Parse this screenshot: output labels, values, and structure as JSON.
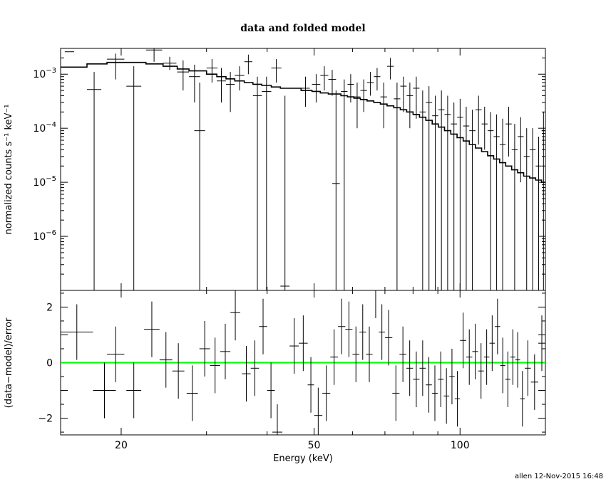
{
  "chart_data": [
    {
      "type": "scatter",
      "title": "data and folded model",
      "xlabel": "Energy (keV)",
      "ylabel": "normalized counts s⁻¹ keV⁻¹",
      "xscale": "log",
      "yscale": "log",
      "xlim": [
        15,
        150
      ],
      "ylim": [
        1e-07,
        0.003
      ],
      "x_ticks": [
        {
          "value": 20,
          "label": "20"
        },
        {
          "value": 50,
          "label": "50"
        },
        {
          "value": 100,
          "label": "100"
        }
      ],
      "y_ticks": [
        {
          "value": 0.001,
          "base": "10",
          "exp": "−3"
        },
        {
          "value": 0.0001,
          "base": "10",
          "exp": "−4"
        },
        {
          "value": 1e-05,
          "base": "10",
          "exp": "−5"
        },
        {
          "value": 1e-06,
          "base": "10",
          "exp": "−6"
        }
      ],
      "data_points": [
        [
          15.3,
          16.0,
          0.0026,
          0.0026,
          0.0026
        ],
        [
          17.0,
          18.2,
          0.00052,
          1e-07,
          0.0011
        ],
        [
          18.7,
          20.3,
          0.0019,
          0.0008,
          0.0024
        ],
        [
          20.5,
          22.0,
          0.0006,
          1e-07,
          0.0014
        ],
        [
          22.5,
          24.3,
          0.0028,
          0.0017,
          0.003
        ],
        [
          24.4,
          26.0,
          0.0016,
          0.0012,
          0.0021
        ],
        [
          26.1,
          27.6,
          0.0011,
          0.0005,
          0.0018
        ],
        [
          27.6,
          29.1,
          0.0009,
          0.0003,
          0.0015
        ],
        [
          28.3,
          29.8,
          9e-05,
          1e-07,
          0.0007
        ],
        [
          30.0,
          31.6,
          0.0013,
          0.0007,
          0.0019
        ],
        [
          31.5,
          32.9,
          0.00075,
          0.0003,
          0.0013
        ],
        [
          32.9,
          34.3,
          0.00065,
          0.0002,
          0.0011
        ],
        [
          34.3,
          35.9,
          0.00095,
          0.0005,
          0.0014
        ],
        [
          35.9,
          37.3,
          0.0017,
          0.001,
          0.0023
        ],
        [
          37.4,
          39.0,
          0.0004,
          1e-07,
          0.0009
        ],
        [
          39.0,
          40.8,
          0.00048,
          1e-07,
          0.0009
        ],
        [
          40.8,
          42.8,
          0.0013,
          0.0007,
          0.0019
        ],
        [
          42.6,
          44.5,
          1.2e-07,
          1e-07,
          0.0004
        ],
        [
          47.0,
          49.0,
          0.00055,
          0.00025,
          0.0009
        ],
        [
          49.5,
          51.5,
          0.00065,
          0.0003,
          0.001
        ],
        [
          51.5,
          53.5,
          0.00095,
          0.0005,
          0.0014
        ],
        [
          53.5,
          55.5,
          0.0008,
          0.0004,
          0.0012
        ],
        [
          54.5,
          56.5,
          9.5e-06,
          1e-07,
          0.0005
        ],
        [
          56.8,
          58.6,
          0.00048,
          1e-07,
          0.0008
        ],
        [
          58.6,
          60.4,
          0.00065,
          0.0003,
          0.001
        ],
        [
          60.4,
          62.3,
          0.00038,
          0.0001,
          0.0007
        ],
        [
          62.3,
          64.3,
          0.0005,
          0.0002,
          0.0008
        ],
        [
          64.3,
          66.4,
          0.0007,
          0.0004,
          0.0011
        ],
        [
          66.4,
          68.5,
          0.0009,
          0.0005,
          0.0013
        ],
        [
          68.5,
          70.7,
          0.00038,
          0.0001,
          0.0007
        ],
        [
          70.7,
          73.0,
          0.0014,
          0.0008,
          0.002
        ],
        [
          73.0,
          75.3,
          0.00035,
          1e-07,
          0.0007
        ],
        [
          75.3,
          77.6,
          0.0006,
          0.0002,
          0.0009
        ],
        [
          77.6,
          80.0,
          0.0004,
          0.0001,
          0.0007
        ],
        [
          80.0,
          82.5,
          0.00055,
          0.00015,
          0.0009
        ],
        [
          82.5,
          85.0,
          0.0002,
          1e-07,
          0.0005
        ],
        [
          85.0,
          87.6,
          0.0003,
          1e-07,
          0.0006
        ],
        [
          87.6,
          90.2,
          0.00017,
          1e-07,
          0.0004
        ],
        [
          90.2,
          92.9,
          0.00022,
          1e-07,
          0.0005
        ],
        [
          92.9,
          95.7,
          0.00018,
          1e-07,
          0.0004
        ],
        [
          95.7,
          98.6,
          0.00012,
          1e-07,
          0.0003
        ],
        [
          98.6,
          101.5,
          0.00016,
          1e-07,
          0.00035
        ],
        [
          101.5,
          104.5,
          0.00011,
          1e-07,
          0.00025
        ],
        [
          104.5,
          107.6,
          9e-05,
          1e-07,
          0.00022
        ],
        [
          107.6,
          110.8,
          0.00022,
          5e-05,
          0.0004
        ],
        [
          110.8,
          114.0,
          0.00012,
          4e-05,
          0.00025
        ],
        [
          114.0,
          117.3,
          9e-05,
          1e-07,
          0.0002
        ],
        [
          117.3,
          120.7,
          7e-05,
          1e-07,
          0.00018
        ],
        [
          120.7,
          124.2,
          5e-05,
          1e-07,
          0.00015
        ],
        [
          124.2,
          127.8,
          0.00012,
          3e-05,
          0.00025
        ],
        [
          127.8,
          131.5,
          4e-05,
          1e-07,
          0.00012
        ],
        [
          131.5,
          135.3,
          7e-05,
          1e-05,
          0.00016
        ],
        [
          135.3,
          139.2,
          3e-05,
          1e-07,
          0.0001
        ],
        [
          139.2,
          143.2,
          4e-05,
          1e-07,
          0.0001
        ],
        [
          143.2,
          147.3,
          2e-05,
          1e-07,
          7e-05
        ],
        [
          147.3,
          150.0,
          9e-05,
          1e-07,
          0.0002
        ]
      ],
      "model_steps": [
        [
          15.0,
          17.0,
          0.00135
        ],
        [
          17.0,
          18.7,
          0.00155
        ],
        [
          18.7,
          20.5,
          0.00165
        ],
        [
          20.5,
          22.5,
          0.00165
        ],
        [
          22.5,
          24.4,
          0.00155
        ],
        [
          24.4,
          26.1,
          0.0014
        ],
        [
          26.1,
          27.6,
          0.00125
        ],
        [
          27.6,
          30.0,
          0.00115
        ],
        [
          30.0,
          31.5,
          0.001
        ],
        [
          31.5,
          32.9,
          0.0009
        ],
        [
          32.9,
          34.3,
          0.00082
        ],
        [
          34.3,
          35.9,
          0.00075
        ],
        [
          35.9,
          37.4,
          0.0007
        ],
        [
          37.4,
          39.0,
          0.00065
        ],
        [
          39.0,
          40.8,
          0.00062
        ],
        [
          40.8,
          42.6,
          0.00058
        ],
        [
          42.6,
          47.0,
          0.00055
        ],
        [
          47.0,
          49.5,
          0.0005
        ],
        [
          49.5,
          51.5,
          0.00048
        ],
        [
          51.5,
          53.5,
          0.00045
        ],
        [
          53.5,
          56.8,
          0.00043
        ],
        [
          56.8,
          58.6,
          0.0004
        ],
        [
          58.6,
          60.4,
          0.00038
        ],
        [
          60.4,
          62.3,
          0.00036
        ],
        [
          62.3,
          64.3,
          0.00034
        ],
        [
          64.3,
          66.4,
          0.00032
        ],
        [
          66.4,
          68.5,
          0.0003
        ],
        [
          68.5,
          70.7,
          0.00028
        ],
        [
          70.7,
          73.0,
          0.00026
        ],
        [
          73.0,
          75.3,
          0.00024
        ],
        [
          75.3,
          77.6,
          0.00022
        ],
        [
          77.6,
          80.0,
          0.0002
        ],
        [
          80.0,
          82.5,
          0.00018
        ],
        [
          82.5,
          85.0,
          0.00016
        ],
        [
          85.0,
          87.6,
          0.00014
        ],
        [
          87.6,
          90.2,
          0.00012
        ],
        [
          90.2,
          92.9,
          0.000105
        ],
        [
          92.9,
          95.7,
          9e-05
        ],
        [
          95.7,
          98.6,
          7.8e-05
        ],
        [
          98.6,
          101.5,
          6.7e-05
        ],
        [
          101.5,
          104.5,
          5.8e-05
        ],
        [
          104.5,
          107.6,
          5e-05
        ],
        [
          107.6,
          110.8,
          4.3e-05
        ],
        [
          110.8,
          114.0,
          3.7e-05
        ],
        [
          114.0,
          117.3,
          3.1e-05
        ],
        [
          117.3,
          120.7,
          2.7e-05
        ],
        [
          120.7,
          124.2,
          2.3e-05
        ],
        [
          124.2,
          127.8,
          2e-05
        ],
        [
          127.8,
          131.5,
          1.7e-05
        ],
        [
          131.5,
          135.3,
          1.5e-05
        ],
        [
          135.3,
          139.2,
          1.3e-05
        ],
        [
          139.2,
          143.2,
          1.2e-05
        ],
        [
          143.2,
          147.3,
          1.1e-05
        ],
        [
          147.3,
          150.0,
          1e-05
        ]
      ],
      "model_color": "#000000"
    },
    {
      "type": "scatter",
      "ylabel": "(data−model)/error",
      "xlabel": "Energy (keV)",
      "xscale": "log",
      "xlim": [
        15,
        150
      ],
      "ylim": [
        -2.6,
        2.6
      ],
      "y_ticks": [
        {
          "value": 2,
          "label": "2"
        },
        {
          "value": 0,
          "label": "0"
        },
        {
          "value": -2,
          "label": "−2"
        }
      ],
      "zero_line_color": "#00ff00",
      "residuals": [
        [
          15.0,
          17.5,
          1.1,
          0.1,
          2.1
        ],
        [
          17.5,
          19.5,
          -1.0,
          -2.0,
          0.0
        ],
        [
          18.7,
          20.3,
          0.3,
          -0.7,
          1.3
        ],
        [
          20.5,
          22.0,
          -1.0,
          -2.0,
          0.0
        ],
        [
          22.3,
          24.0,
          1.2,
          0.2,
          2.2
        ],
        [
          24.0,
          25.5,
          0.1,
          -0.9,
          1.1
        ],
        [
          25.5,
          27.0,
          -0.3,
          -1.3,
          0.7
        ],
        [
          27.3,
          28.8,
          -1.1,
          -2.1,
          -0.1
        ],
        [
          29.0,
          30.5,
          0.5,
          -0.5,
          1.5
        ],
        [
          30.5,
          32.0,
          -0.1,
          -1.1,
          0.9
        ],
        [
          32.0,
          33.6,
          0.4,
          -0.6,
          1.4
        ],
        [
          33.6,
          35.2,
          1.8,
          0.8,
          2.6
        ],
        [
          35.5,
          37.0,
          -0.4,
          -1.4,
          0.6
        ],
        [
          37.0,
          38.5,
          -0.2,
          -1.2,
          0.8
        ],
        [
          38.5,
          40.0,
          1.3,
          0.3,
          2.3
        ],
        [
          40.0,
          41.5,
          -1.0,
          -2.0,
          0.0
        ],
        [
          41.0,
          43.0,
          -2.5,
          -2.6,
          -1.5
        ],
        [
          44.5,
          46.5,
          0.6,
          -0.4,
          1.6
        ],
        [
          46.5,
          48.5,
          0.7,
          -0.3,
          1.7
        ],
        [
          48.5,
          50.0,
          -0.8,
          -1.8,
          0.2
        ],
        [
          50.0,
          52.0,
          -1.9,
          -2.6,
          -0.9
        ],
        [
          52.0,
          54.0,
          -1.1,
          -2.1,
          -0.1
        ],
        [
          54.0,
          56.0,
          0.2,
          -0.8,
          1.2
        ],
        [
          56.0,
          58.0,
          1.3,
          0.3,
          2.3
        ],
        [
          58.0,
          60.0,
          1.2,
          0.2,
          2.2
        ],
        [
          60.0,
          62.0,
          0.3,
          -0.7,
          1.3
        ],
        [
          62.0,
          64.0,
          1.1,
          0.1,
          2.1
        ],
        [
          64.0,
          66.0,
          0.3,
          -0.7,
          1.3
        ],
        [
          66.0,
          68.0,
          2.6,
          1.6,
          2.6
        ],
        [
          68.0,
          70.0,
          1.1,
          0.1,
          2.1
        ],
        [
          70.0,
          72.5,
          0.9,
          -0.1,
          1.9
        ],
        [
          72.5,
          75.0,
          -1.1,
          -2.1,
          -0.1
        ],
        [
          75.0,
          77.5,
          0.3,
          -0.7,
          1.3
        ],
        [
          77.5,
          80.0,
          -0.2,
          -1.2,
          0.8
        ],
        [
          80.0,
          82.5,
          -0.6,
          -1.6,
          0.4
        ],
        [
          82.5,
          85.0,
          -0.2,
          -1.2,
          0.8
        ],
        [
          85.0,
          87.5,
          -0.8,
          -1.8,
          0.2
        ],
        [
          87.5,
          90.0,
          -1.1,
          -2.1,
          -0.1
        ],
        [
          90.0,
          92.5,
          -0.6,
          -1.6,
          0.4
        ],
        [
          92.5,
          95.0,
          -1.2,
          -2.2,
          -0.2
        ],
        [
          95.0,
          97.5,
          -0.5,
          -1.5,
          0.5
        ],
        [
          97.5,
          100.0,
          -1.3,
          -2.3,
          -0.3
        ],
        [
          100.0,
          103.0,
          0.8,
          -0.2,
          1.8
        ],
        [
          103.0,
          106.0,
          0.2,
          -0.8,
          1.2
        ],
        [
          106.0,
          109.0,
          0.4,
          -0.6,
          1.4
        ],
        [
          109.0,
          112.0,
          -0.3,
          -1.3,
          0.7
        ],
        [
          112.0,
          115.0,
          0.2,
          -0.8,
          1.2
        ],
        [
          115.0,
          118.0,
          0.7,
          -0.3,
          1.7
        ],
        [
          118.0,
          121.0,
          1.3,
          0.3,
          2.3
        ],
        [
          121.0,
          124.0,
          -0.1,
          -1.1,
          0.9
        ],
        [
          124.0,
          127.0,
          -0.6,
          -1.6,
          0.4
        ],
        [
          127.0,
          130.0,
          0.2,
          -0.8,
          1.2
        ],
        [
          130.0,
          133.0,
          0.1,
          -0.9,
          1.1
        ],
        [
          133.0,
          136.0,
          -1.3,
          -2.3,
          -0.3
        ],
        [
          136.0,
          140.0,
          -0.2,
          -1.2,
          0.8
        ],
        [
          140.0,
          145.0,
          -0.7,
          -1.7,
          0.3
        ],
        [
          145.0,
          150.0,
          0.7,
          -0.3,
          1.7
        ]
      ]
    }
  ],
  "footer": "allen 12-Nov-2015 16:48"
}
